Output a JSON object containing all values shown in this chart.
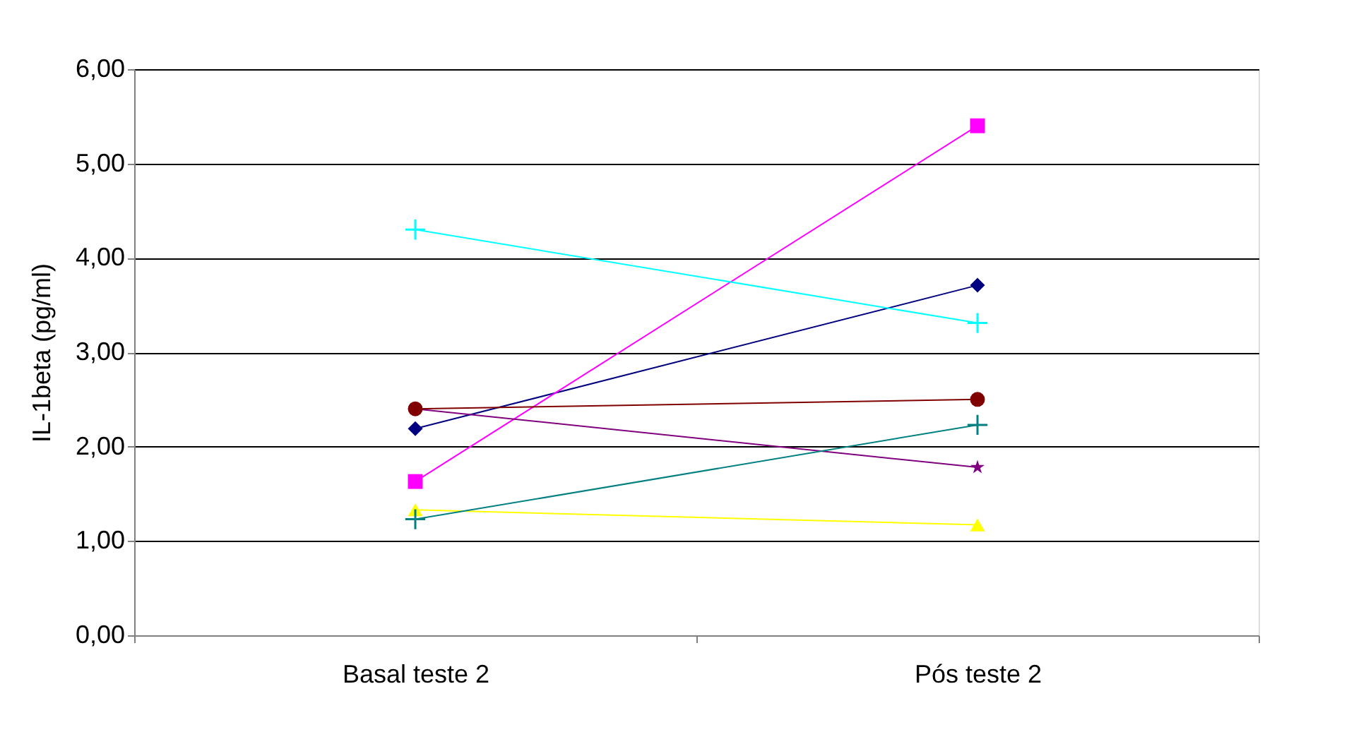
{
  "chart_data": {
    "type": "line",
    "ylabel": "IL-1beta (pg/ml)",
    "categories": [
      "Basal teste 2",
      "Pós teste 2"
    ],
    "ylim": [
      0,
      6
    ],
    "yticks": [
      {
        "value": 0,
        "label": "0,00"
      },
      {
        "value": 1,
        "label": "1,00"
      },
      {
        "value": 2,
        "label": "2,00"
      },
      {
        "value": 3,
        "label": "3,00"
      },
      {
        "value": 4,
        "label": "4,00"
      },
      {
        "value": 5,
        "label": "5,00"
      },
      {
        "value": 6,
        "label": "6,00"
      }
    ],
    "grid": "y",
    "legend": false,
    "series": [
      {
        "color": "#000080",
        "values": [
          2.19,
          3.71
        ],
        "marker": "diamond"
      },
      {
        "color": "#ff00ff",
        "values": [
          1.63,
          5.4
        ],
        "marker": "square"
      },
      {
        "color": "#ffff00",
        "values": [
          1.33,
          1.17
        ],
        "marker": "triangle"
      },
      {
        "color": "#00ffff",
        "values": [
          4.3,
          3.31
        ],
        "marker": "cross"
      },
      {
        "color": "#800080",
        "values": [
          2.4,
          1.78
        ],
        "marker": "star"
      },
      {
        "color": "#800000",
        "values": [
          2.4,
          2.5
        ],
        "marker": "circle"
      },
      {
        "color": "#008080",
        "values": [
          1.23,
          2.23
        ],
        "marker": "cross"
      }
    ]
  }
}
